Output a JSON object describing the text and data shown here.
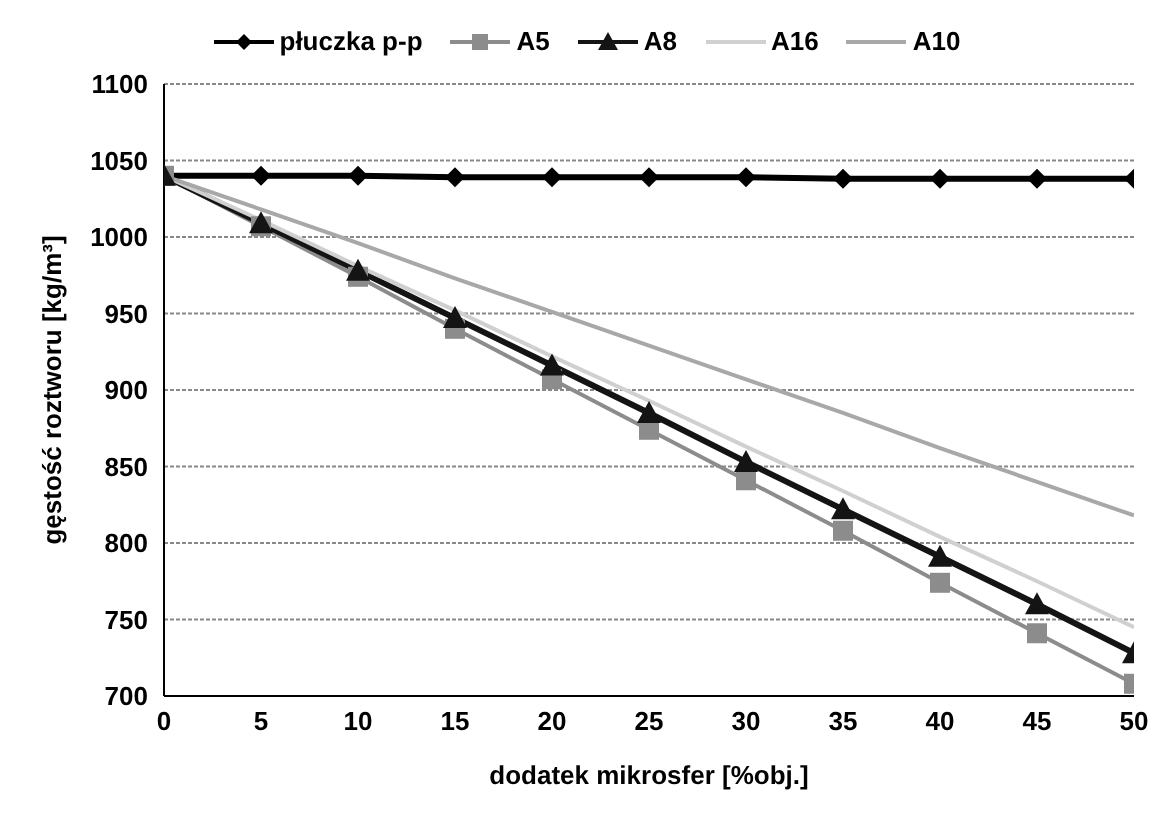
{
  "chart_data": {
    "type": "line",
    "xlabel": "dodatek mikrosfer [%obj.]",
    "ylabel": "gęstość roztworu [kg/m³]",
    "x": [
      0,
      5,
      10,
      15,
      20,
      25,
      30,
      35,
      40,
      45,
      50
    ],
    "xlim": [
      0,
      50
    ],
    "xticks": [
      0,
      5,
      10,
      15,
      20,
      25,
      30,
      35,
      40,
      45,
      50
    ],
    "ylim": [
      700,
      1100
    ],
    "yticks": [
      700,
      750,
      800,
      850,
      900,
      950,
      1000,
      1050,
      1100
    ],
    "grid": "y",
    "legend": "top",
    "series": [
      {
        "name": "płuczka p-p",
        "color": "#000000",
        "marker": "diamond",
        "values": [
          1040,
          1040,
          1040,
          1039,
          1039,
          1039,
          1039,
          1038,
          1038,
          1038,
          1038
        ]
      },
      {
        "name": "A5",
        "color": "#8c8c8c",
        "marker": "square",
        "values": [
          1040,
          1007,
          974,
          940,
          907,
          874,
          841,
          808,
          774,
          741,
          708
        ]
      },
      {
        "name": "A8",
        "color": "#141414",
        "marker": "triangle",
        "values": [
          1040,
          1009,
          978,
          947,
          916,
          885,
          853,
          822,
          791,
          760,
          728
        ]
      },
      {
        "name": "A16",
        "color": "#d0d0d0",
        "marker": "none",
        "values": [
          1040,
          1011,
          981,
          952,
          922,
          893,
          863,
          834,
          804,
          775,
          745
        ]
      },
      {
        "name": "A10",
        "color": "#a8a8a8",
        "marker": "none",
        "values": [
          1040,
          1018,
          996,
          973,
          951,
          929,
          907,
          885,
          862,
          840,
          818
        ]
      }
    ]
  }
}
